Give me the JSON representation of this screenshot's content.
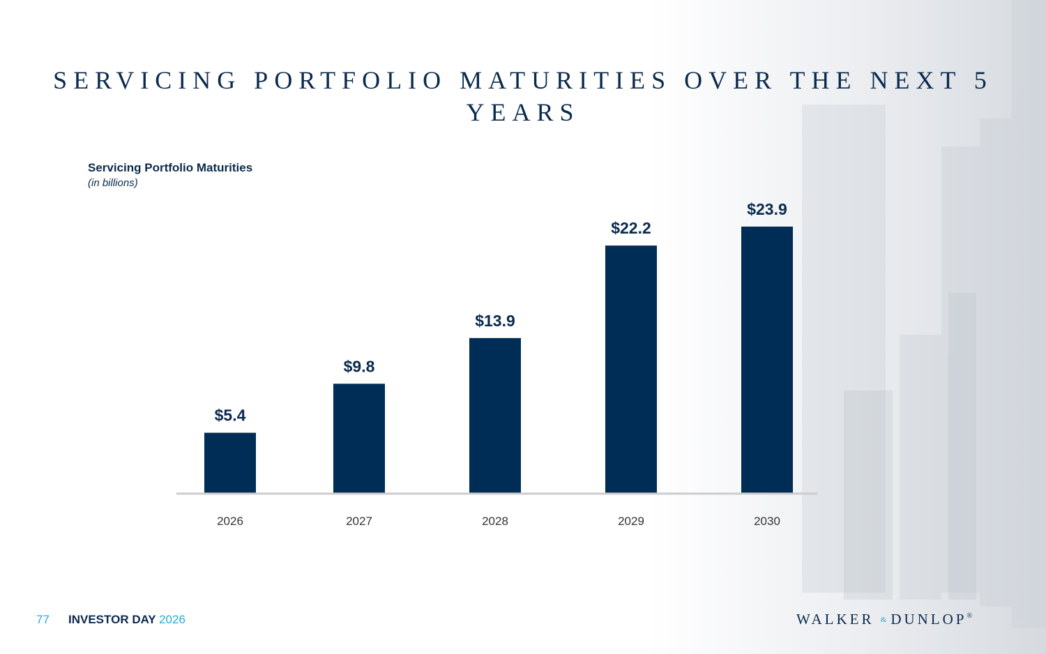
{
  "slide": {
    "title": "SERVICING PORTFOLIO MATURITIES OVER THE NEXT 5 YEARS",
    "footer": {
      "page_number": "77",
      "event": "INVESTOR DAY ",
      "year": "2026"
    },
    "logo": {
      "left": "WALKER",
      "amp": "&",
      "right": "DUNLOP",
      "reg": "®"
    }
  },
  "colors": {
    "bar": "#002d55",
    "text": "#0a2a4d",
    "accent": "#2ba8d6",
    "axis": "#cccccc"
  },
  "chart_data": {
    "type": "bar",
    "title": "Servicing Portfolio Maturities",
    "subtitle": "(in billions)",
    "categories": [
      "2026",
      "2027",
      "2028",
      "2029",
      "2030"
    ],
    "values": [
      5.4,
      9.8,
      13.9,
      22.2,
      23.9
    ],
    "data_labels": [
      "$5.4",
      "$9.8",
      "$13.9",
      "$22.2",
      "$23.9"
    ],
    "ylim": [
      0,
      23.9
    ],
    "grid": false,
    "legend": "none"
  }
}
